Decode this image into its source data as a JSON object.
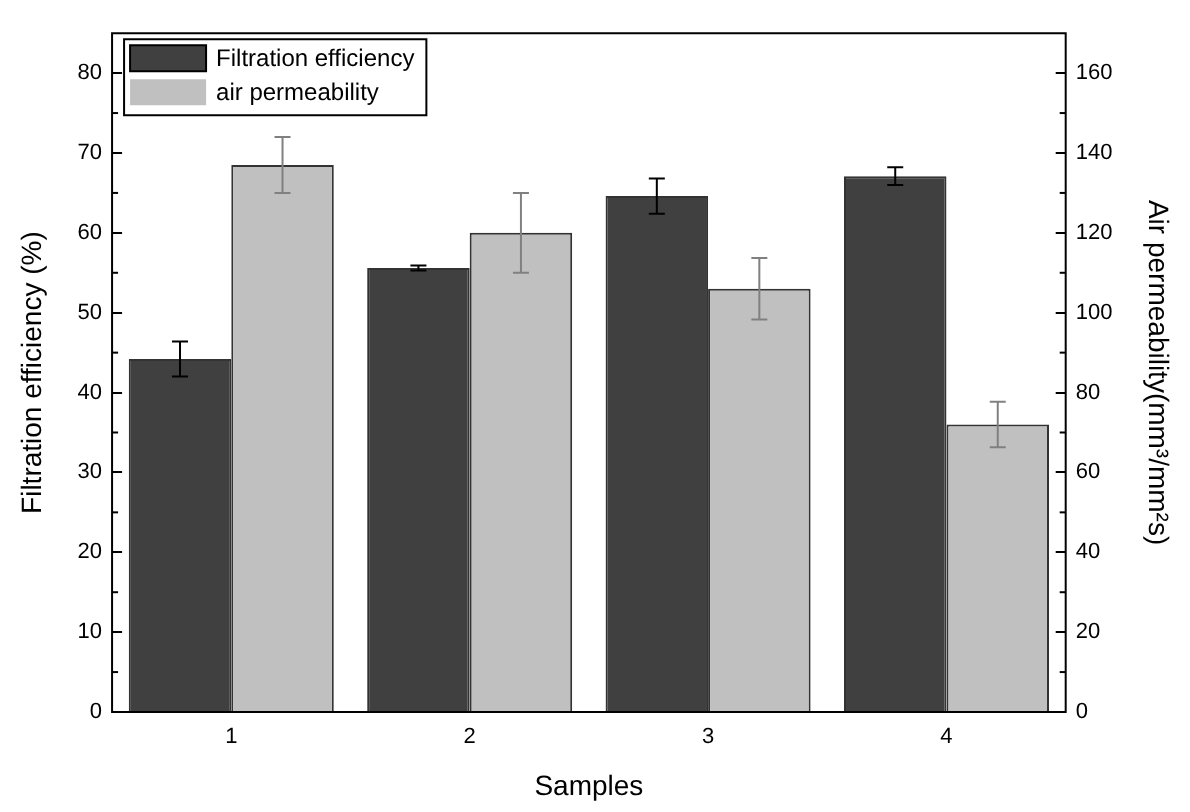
{
  "chart_data": {
    "type": "bar",
    "xlabel": "Samples",
    "ylabel": "Filtration efficiency (%)",
    "y2label": "Air permeability(mm³/mm²s)",
    "categories": [
      "1",
      "2",
      "3",
      "4"
    ],
    "series": [
      {
        "name": "Filtration efficiency",
        "color": "#404040",
        "values": [
          44.2,
          55.6,
          64.6,
          67.1
        ],
        "errors": [
          2.2,
          0.3,
          2.2,
          1.1
        ]
      },
      {
        "name": "air permeability",
        "color": "#c0c0c0",
        "axis": "y2",
        "values": [
          137,
          120,
          106,
          72
        ],
        "errors": [
          7,
          10,
          7.7,
          5.7
        ]
      }
    ],
    "ylim": [
      0,
      85
    ],
    "yticks": [
      0,
      10,
      20,
      30,
      40,
      50,
      60,
      70,
      80
    ],
    "y2lim": [
      0,
      170
    ],
    "y2ticks": [
      0,
      20,
      40,
      60,
      80,
      100,
      120,
      140,
      160
    ],
    "grid": false,
    "legend": "top left"
  }
}
